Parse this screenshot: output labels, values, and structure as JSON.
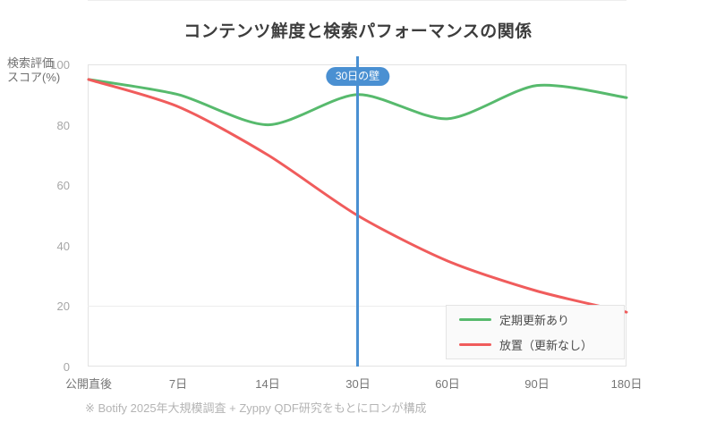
{
  "title": "コンテンツ鮮度と検索パフォーマンスの関係",
  "footnote": "※ Botify 2025年大規模調査 + Zyppy QDF研究をもとにロンが構成",
  "colors": {
    "regular_update_green": "#57ba6d",
    "neglected_red": "#f05c5c",
    "threshold_blue": "#4a90d2",
    "grid": "#ededed",
    "plot_border": "#e3e3e3"
  },
  "y_axis": {
    "label_line1": "検索評価",
    "label_line2": "スコア(%)",
    "ticks": [
      "0",
      "20",
      "40",
      "60",
      "80",
      "100"
    ]
  },
  "chart_data": {
    "type": "line",
    "title": "コンテンツ鮮度と検索パフォーマンスの関係",
    "xlabel": "",
    "ylabel": "検索評価スコア(%)",
    "ylim": [
      0,
      100
    ],
    "grid": "horizontal",
    "legend_position": "bottom-right",
    "categories": [
      "公開直後",
      "7日",
      "14日",
      "30日",
      "60日",
      "90日",
      "180日"
    ],
    "series": [
      {
        "name": "定期更新あり",
        "color": "#57ba6d",
        "values": [
          95,
          90,
          80,
          90,
          82,
          93,
          89
        ]
      },
      {
        "name": "放置（更新なし）",
        "color": "#f05c5c",
        "values": [
          95,
          86,
          70,
          50,
          35,
          25,
          18
        ]
      }
    ],
    "annotation": {
      "text": "30日の壁",
      "x_category": "30日",
      "color": "#4a90d2"
    }
  }
}
